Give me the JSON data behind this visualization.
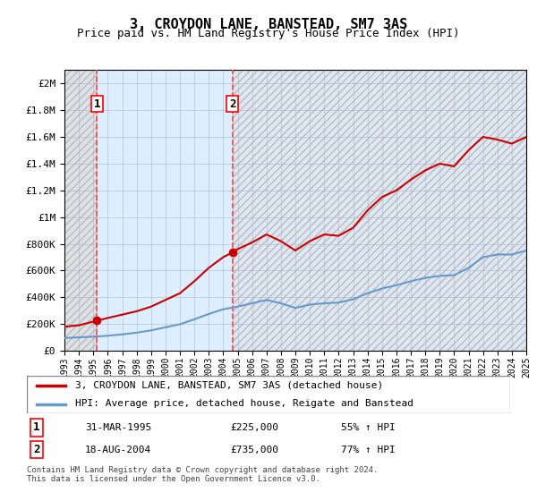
{
  "title": "3, CROYDON LANE, BANSTEAD, SM7 3AS",
  "subtitle": "Price paid vs. HM Land Registry's House Price Index (HPI)",
  "hpi_label": "HPI: Average price, detached house, Reigate and Banstead",
  "property_label": "3, CROYDON LANE, BANSTEAD, SM7 3AS (detached house)",
  "footnote": "Contains HM Land Registry data © Crown copyright and database right 2024.\nThis data is licensed under the Open Government Licence v3.0.",
  "sale1_date": "31-MAR-1995",
  "sale1_price": 225000,
  "sale1_pct": "55% ↑ HPI",
  "sale2_date": "18-AUG-2004",
  "sale2_price": 735000,
  "sale2_pct": "77% ↑ HPI",
  "sale1_x": 1995.25,
  "sale2_x": 2004.63,
  "ylim_max": 2100000,
  "ylim_min": 0,
  "xlim_min": 1993,
  "xlim_max": 2025,
  "property_color": "#cc0000",
  "hpi_color": "#6699cc",
  "hatch_color": "#cccccc",
  "grid_color": "#aaaacc",
  "bg_color": "#ddeeff",
  "hatch_bg": "#e8e8e8",
  "vline_color": "#ff4444",
  "property_data_x": [
    1993.0,
    1994.0,
    1995.25,
    1996.0,
    1997.0,
    1998.0,
    1999.0,
    2000.0,
    2001.0,
    2002.0,
    2003.0,
    2004.0,
    2004.63,
    2005.0,
    2006.0,
    2007.0,
    2008.0,
    2009.0,
    2010.0,
    2011.0,
    2012.0,
    2013.0,
    2014.0,
    2015.0,
    2016.0,
    2017.0,
    2018.0,
    2019.0,
    2020.0,
    2021.0,
    2022.0,
    2023.0,
    2024.0,
    2025.0
  ],
  "property_data_y": [
    180000,
    190000,
    225000,
    245000,
    270000,
    295000,
    330000,
    380000,
    430000,
    520000,
    620000,
    700000,
    735000,
    760000,
    810000,
    870000,
    820000,
    750000,
    820000,
    870000,
    860000,
    920000,
    1050000,
    1150000,
    1200000,
    1280000,
    1350000,
    1400000,
    1380000,
    1500000,
    1600000,
    1580000,
    1550000,
    1600000
  ],
  "hpi_data_x": [
    1993.0,
    1994.0,
    1995.0,
    1996.0,
    1997.0,
    1998.0,
    1999.0,
    2000.0,
    2001.0,
    2002.0,
    2003.0,
    2004.0,
    2005.0,
    2006.0,
    2007.0,
    2008.0,
    2009.0,
    2010.0,
    2011.0,
    2012.0,
    2013.0,
    2014.0,
    2015.0,
    2016.0,
    2017.0,
    2018.0,
    2019.0,
    2020.0,
    2021.0,
    2022.0,
    2023.0,
    2024.0,
    2025.0
  ],
  "hpi_data_y": [
    95000,
    100000,
    105000,
    112000,
    122000,
    135000,
    152000,
    175000,
    198000,
    235000,
    275000,
    310000,
    330000,
    355000,
    380000,
    355000,
    320000,
    345000,
    355000,
    360000,
    385000,
    430000,
    465000,
    490000,
    520000,
    545000,
    560000,
    565000,
    620000,
    700000,
    720000,
    720000,
    750000
  ],
  "xticks": [
    1993,
    1994,
    1995,
    1996,
    1997,
    1998,
    1999,
    2000,
    2001,
    2002,
    2003,
    2004,
    2005,
    2006,
    2007,
    2008,
    2009,
    2010,
    2011,
    2012,
    2013,
    2014,
    2015,
    2016,
    2017,
    2018,
    2019,
    2020,
    2021,
    2022,
    2023,
    2024,
    2025
  ],
  "yticks": [
    0,
    200000,
    400000,
    600000,
    800000,
    1000000,
    1200000,
    1400000,
    1600000,
    1800000,
    2000000
  ],
  "ytick_labels": [
    "£0",
    "£200K",
    "£400K",
    "£600K",
    "£800K",
    "£1M",
    "£1.2M",
    "£1.4M",
    "£1.6M",
    "£1.8M",
    "£2M"
  ]
}
